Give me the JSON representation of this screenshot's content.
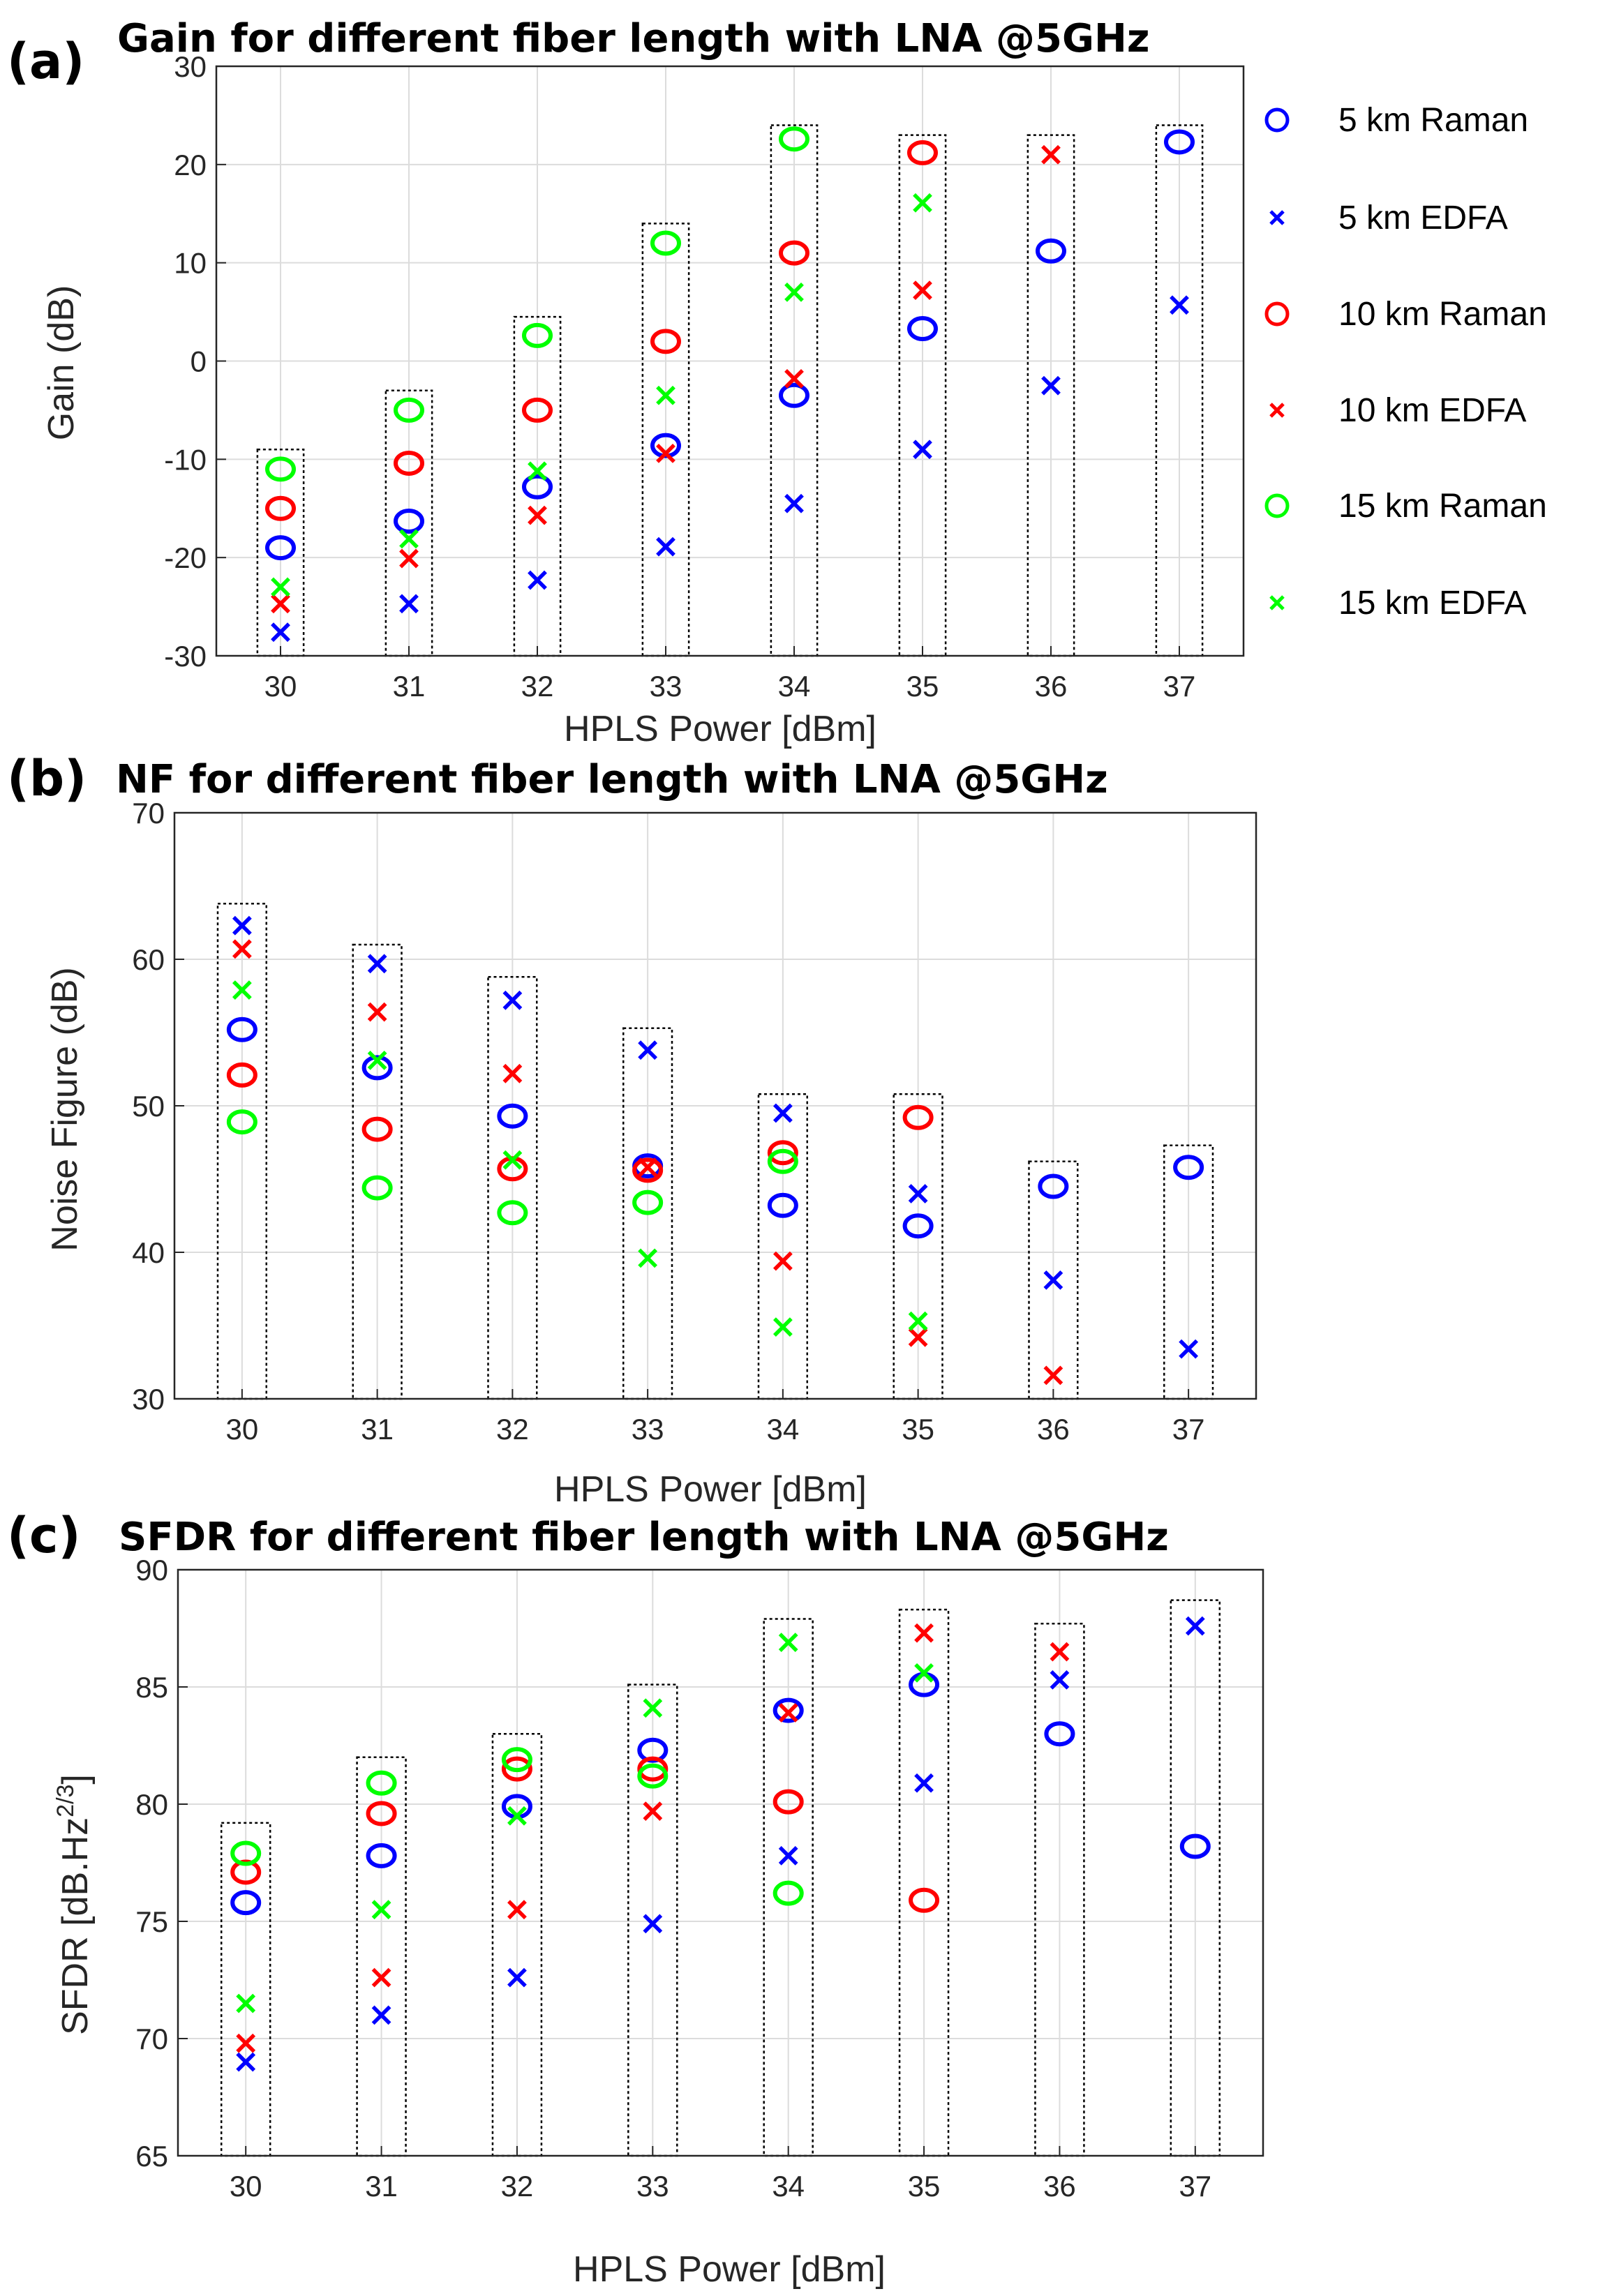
{
  "chart_data": [
    {
      "type": "scatter",
      "panel": "(a)",
      "title": "Gain for different fiber length with LNA @5GHz",
      "xlabel": "HPLS Power [dBm]",
      "ylabel": "Gain (dB)",
      "ylim": [
        -30,
        30
      ],
      "yticks": [
        -30,
        -20,
        -10,
        0,
        10,
        20,
        30
      ],
      "x": [
        30,
        31,
        32,
        33,
        34,
        35,
        36,
        37
      ],
      "grid": true,
      "groups": [
        {
          "x": 30,
          "low": -30,
          "high": -9
        },
        {
          "x": 31,
          "low": -30,
          "high": -3
        },
        {
          "x": 32,
          "low": -30,
          "high": 4.5
        },
        {
          "x": 33,
          "low": -30,
          "high": 14
        },
        {
          "x": 34,
          "low": -30,
          "high": 24
        },
        {
          "x": 35,
          "low": -30,
          "high": 23
        },
        {
          "x": 36,
          "low": -30,
          "high": 23
        },
        {
          "x": 37,
          "low": -30,
          "high": 24
        }
      ],
      "series": [
        {
          "name": "5 km Raman",
          "color": "#0000ff",
          "marker": "circle",
          "x": [
            30,
            31,
            32,
            33,
            34,
            35,
            36,
            37
          ],
          "values": [
            -19,
            -16.3,
            -12.8,
            -8.6,
            -3.5,
            3.3,
            11.2,
            22.3
          ]
        },
        {
          "name": "5 km EDFA",
          "color": "#0000ff",
          "marker": "cross",
          "x": [
            30,
            31,
            32,
            33,
            34,
            35,
            36,
            37
          ],
          "values": [
            -27.6,
            -24.7,
            -22.3,
            -18.9,
            -14.5,
            -9,
            -2.5,
            5.7
          ]
        },
        {
          "name": "10 km Raman",
          "color": "#ff0000",
          "marker": "circle",
          "x": [
            30,
            31,
            32,
            33,
            34,
            35
          ],
          "values": [
            -15,
            -10.4,
            -5,
            2,
            11,
            21.2
          ]
        },
        {
          "name": "10 km EDFA",
          "color": "#ff0000",
          "marker": "cross",
          "x": [
            30,
            31,
            32,
            33,
            34,
            35,
            36
          ],
          "values": [
            -24.7,
            -20.1,
            -15.7,
            -9.4,
            -1.8,
            7.2,
            21
          ]
        },
        {
          "name": "15 km Raman",
          "color": "#00ff00",
          "marker": "circle",
          "x": [
            30,
            31,
            32,
            33,
            34
          ],
          "values": [
            -11,
            -5,
            2.6,
            12,
            22.6
          ]
        },
        {
          "name": "15 km EDFA",
          "color": "#00ff00",
          "marker": "cross",
          "x": [
            30,
            31,
            32,
            33,
            34,
            35
          ],
          "values": [
            -23,
            -18.1,
            -11.2,
            -3.5,
            7,
            16.1
          ]
        }
      ],
      "legend_position": "right"
    },
    {
      "type": "scatter",
      "panel": "(b)",
      "title": "NF for different fiber length with LNA @5GHz",
      "xlabel": "HPLS Power [dBm]",
      "ylabel": "Noise Figure (dB)",
      "ylim": [
        30,
        70
      ],
      "yticks": [
        30,
        40,
        50,
        60,
        70
      ],
      "x": [
        30,
        31,
        32,
        33,
        34,
        35,
        36,
        37
      ],
      "grid": true,
      "groups": [
        {
          "x": 30,
          "low": 30,
          "high": 63.8
        },
        {
          "x": 31,
          "low": 30,
          "high": 61
        },
        {
          "x": 32,
          "low": 30,
          "high": 58.8
        },
        {
          "x": 33,
          "low": 30,
          "high": 55.3
        },
        {
          "x": 34,
          "low": 30,
          "high": 50.8
        },
        {
          "x": 35,
          "low": 30,
          "high": 50.8
        },
        {
          "x": 36,
          "low": 30,
          "high": 46.2
        },
        {
          "x": 37,
          "low": 30,
          "high": 47.3
        }
      ],
      "series": [
        {
          "name": "5 km Raman",
          "color": "#0000ff",
          "marker": "circle",
          "x": [
            30,
            31,
            32,
            33,
            34,
            35,
            36,
            37
          ],
          "values": [
            55.2,
            52.6,
            49.3,
            45.9,
            43.2,
            41.8,
            44.5,
            45.8
          ]
        },
        {
          "name": "5 km EDFA",
          "color": "#0000ff",
          "marker": "cross",
          "x": [
            30,
            31,
            32,
            33,
            34,
            35,
            36,
            37
          ],
          "values": [
            62.3,
            59.7,
            57.2,
            53.8,
            49.5,
            44,
            38.1,
            33.4
          ]
        },
        {
          "name": "10 km Raman",
          "color": "#ff0000",
          "marker": "circle",
          "x": [
            30,
            31,
            32,
            33,
            34,
            35
          ],
          "values": [
            52.1,
            48.4,
            45.7,
            45.6,
            46.8,
            49.2
          ]
        },
        {
          "name": "10 km EDFA",
          "color": "#ff0000",
          "marker": "cross",
          "x": [
            30,
            31,
            32,
            33,
            34,
            35,
            36
          ],
          "values": [
            60.7,
            56.4,
            52.2,
            45.8,
            39.4,
            34.2,
            31.6
          ]
        },
        {
          "name": "15 km Raman",
          "color": "#00ff00",
          "marker": "circle",
          "x": [
            30,
            31,
            32,
            33,
            34
          ],
          "values": [
            48.9,
            44.4,
            42.7,
            43.4,
            46.2
          ]
        },
        {
          "name": "15 km EDFA",
          "color": "#00ff00",
          "marker": "cross",
          "x": [
            30,
            31,
            32,
            33,
            34,
            35
          ],
          "values": [
            57.9,
            53.1,
            46.3,
            39.6,
            34.9,
            35.3
          ]
        }
      ]
    },
    {
      "type": "scatter",
      "panel": "(c)",
      "title": "SFDR for different fiber length with LNA @5GHz",
      "xlabel": "HPLS Power [dBm]",
      "ylabel": "SFDR [dB.Hz",
      "ylabel_sup": "2/3",
      "ylabel_suffix": "]",
      "ylim": [
        65,
        90
      ],
      "yticks": [
        65,
        70,
        75,
        80,
        85,
        90
      ],
      "x": [
        30,
        31,
        32,
        33,
        34,
        35,
        36,
        37
      ],
      "grid": true,
      "groups": [
        {
          "x": 30,
          "low": 65,
          "high": 79.2
        },
        {
          "x": 31,
          "low": 65,
          "high": 82
        },
        {
          "x": 32,
          "low": 65,
          "high": 83
        },
        {
          "x": 33,
          "low": 65,
          "high": 85.1
        },
        {
          "x": 34,
          "low": 65,
          "high": 87.9
        },
        {
          "x": 35,
          "low": 65,
          "high": 88.3
        },
        {
          "x": 36,
          "low": 65,
          "high": 87.7
        },
        {
          "x": 37,
          "low": 65,
          "high": 88.7
        }
      ],
      "series": [
        {
          "name": "5 km Raman",
          "color": "#0000ff",
          "marker": "circle",
          "x": [
            30,
            31,
            32,
            33,
            34,
            35,
            36,
            37
          ],
          "values": [
            75.8,
            77.8,
            79.9,
            82.3,
            84,
            85.1,
            83,
            78.2
          ]
        },
        {
          "name": "5 km EDFA",
          "color": "#0000ff",
          "marker": "cross",
          "x": [
            30,
            31,
            32,
            33,
            34,
            35,
            36,
            37
          ],
          "values": [
            69,
            71,
            72.6,
            74.9,
            77.8,
            80.9,
            85.3,
            87.6
          ]
        },
        {
          "name": "10 km Raman",
          "color": "#ff0000",
          "marker": "circle",
          "x": [
            30,
            31,
            32,
            33,
            34,
            35
          ],
          "values": [
            77.1,
            79.6,
            81.5,
            81.5,
            80.1,
            75.9
          ]
        },
        {
          "name": "10 km EDFA",
          "color": "#ff0000",
          "marker": "cross",
          "x": [
            30,
            31,
            32,
            33,
            34,
            35,
            36
          ],
          "values": [
            69.8,
            72.6,
            75.5,
            79.7,
            83.9,
            87.3,
            86.5
          ]
        },
        {
          "name": "15 km Raman",
          "color": "#00ff00",
          "marker": "circle",
          "x": [
            30,
            31,
            32,
            33,
            34
          ],
          "values": [
            77.9,
            80.9,
            81.9,
            81.2,
            76.2
          ]
        },
        {
          "name": "15 km EDFA",
          "color": "#00ff00",
          "marker": "cross",
          "x": [
            30,
            31,
            32,
            33,
            34,
            35
          ],
          "values": [
            71.5,
            75.5,
            79.5,
            84.1,
            86.9,
            85.6
          ]
        }
      ]
    }
  ]
}
